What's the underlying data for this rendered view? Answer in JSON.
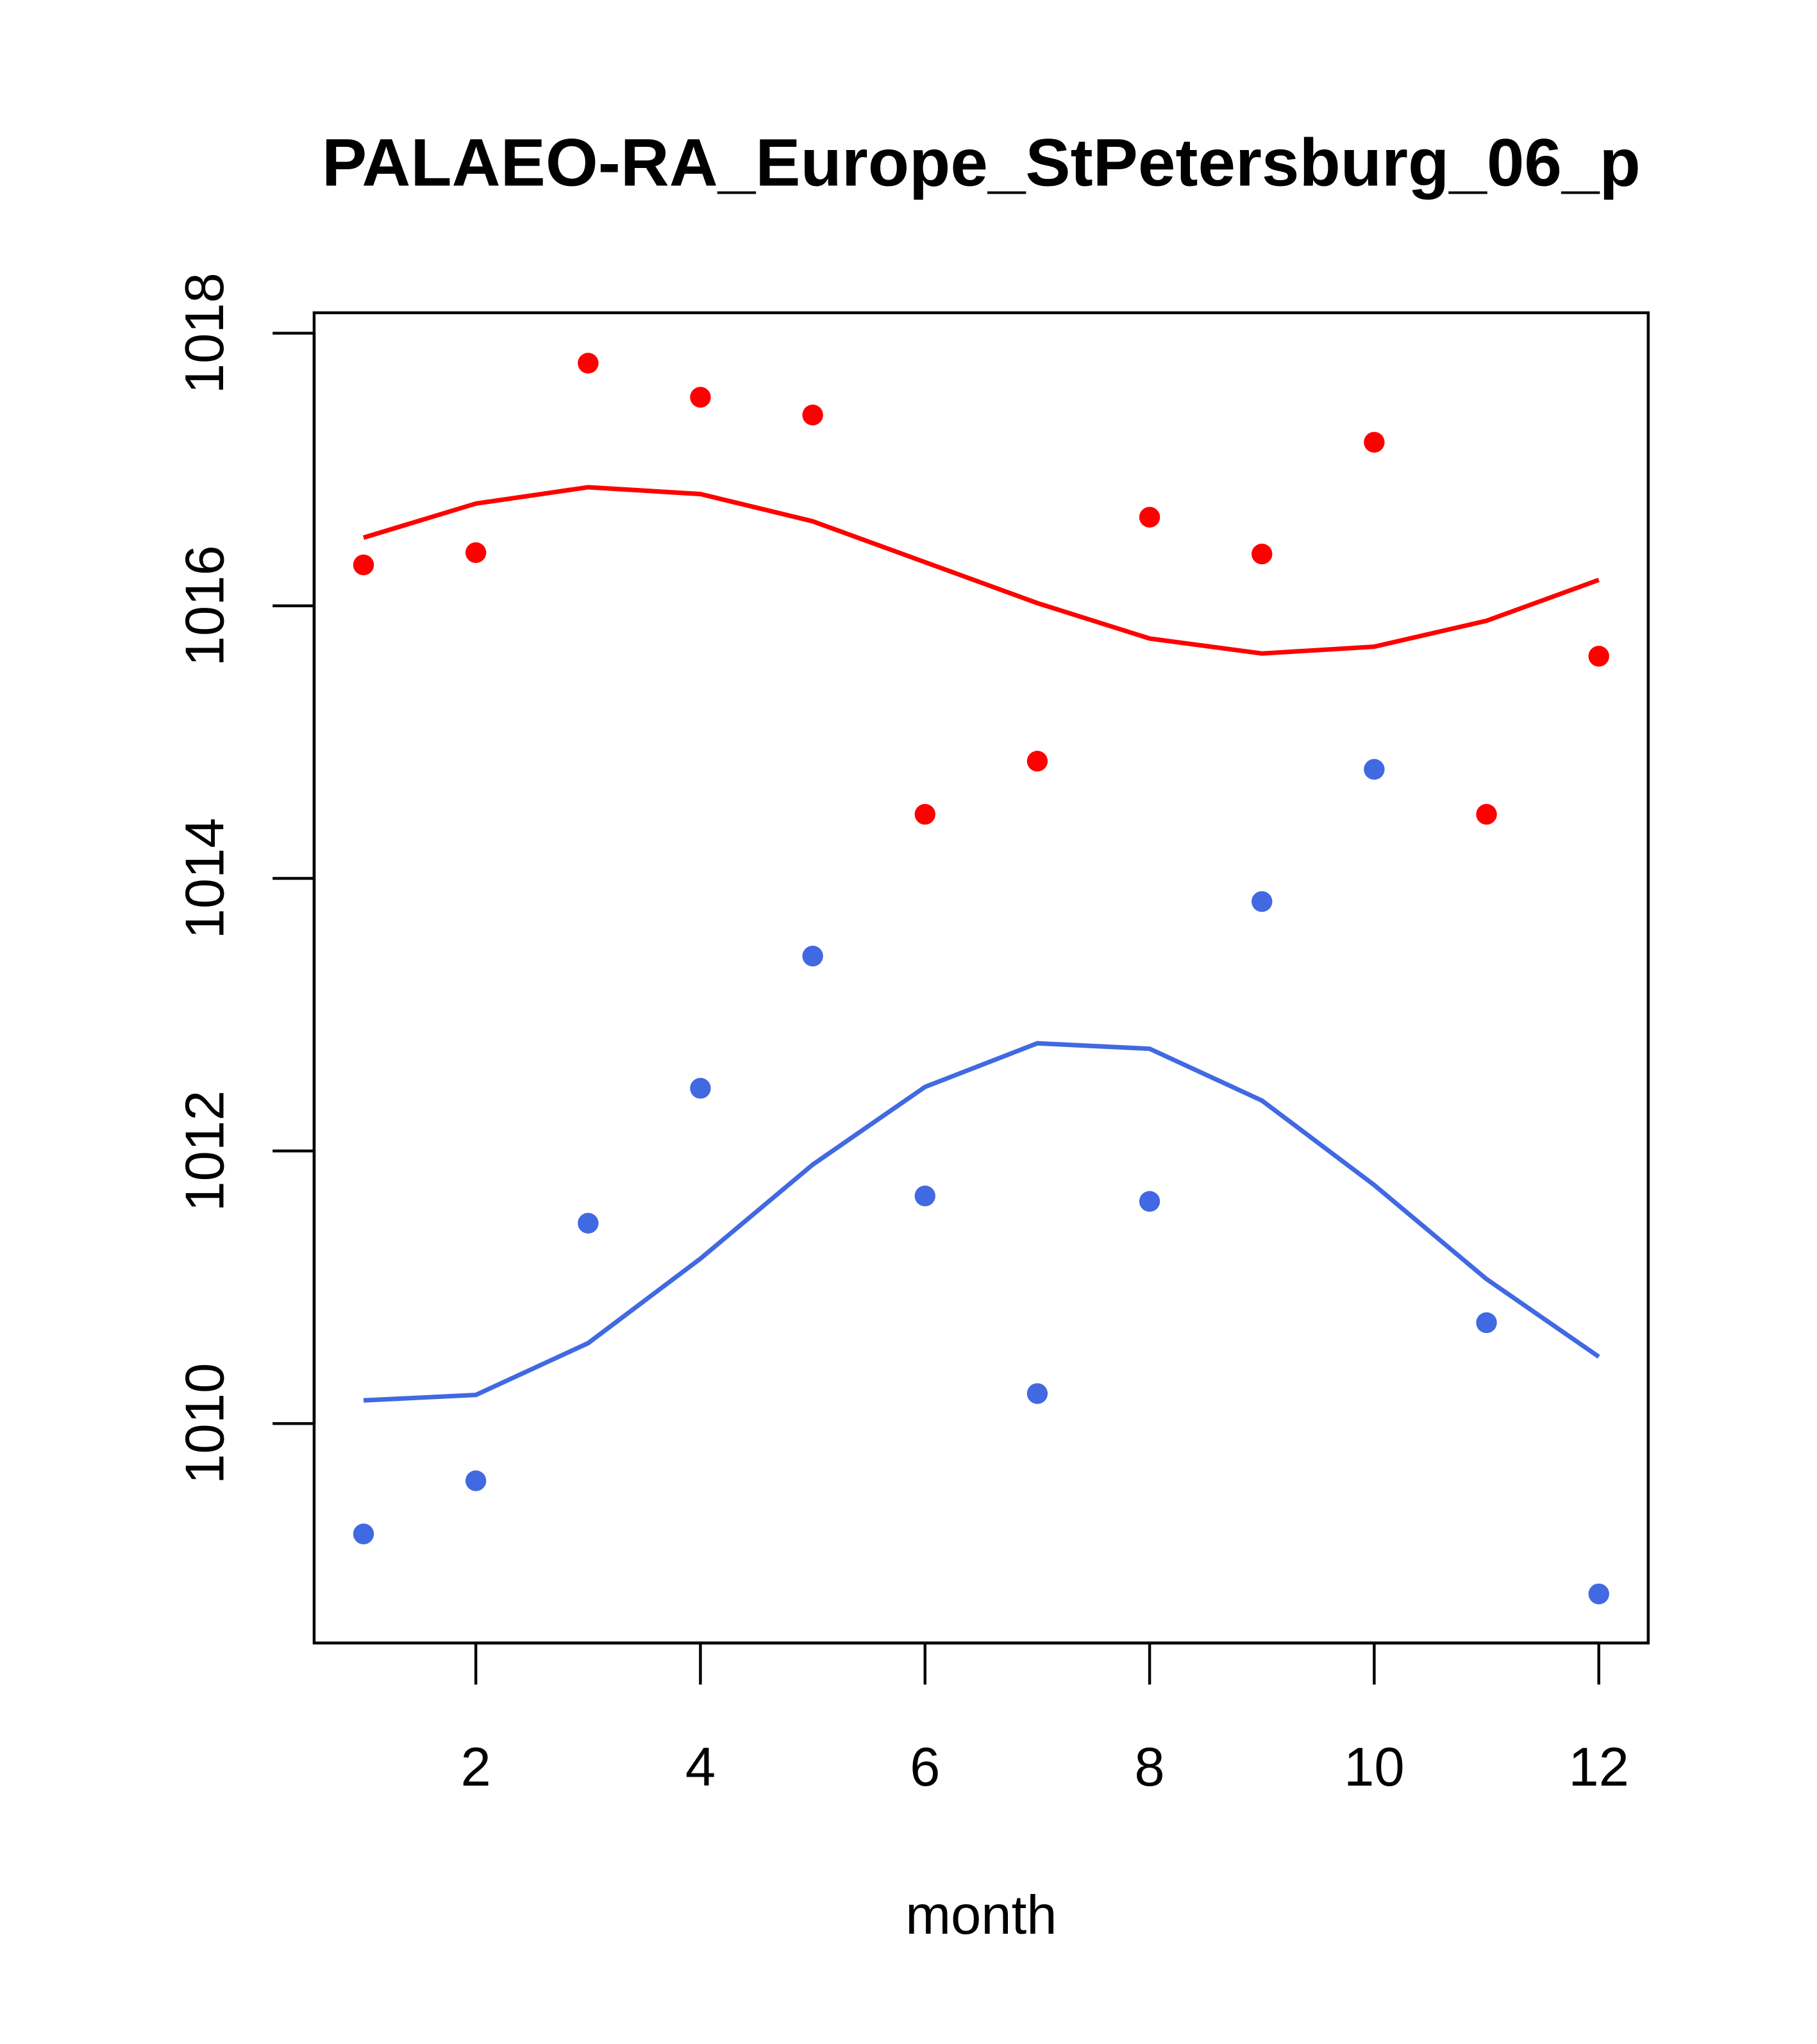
{
  "chart_data": {
    "type": "scatter",
    "title": "PALAEO-RA_Europe_StPetersburg_06_p",
    "xlabel": "month",
    "ylabel": "",
    "xlim": [
      0.56,
      12.44
    ],
    "ylim": [
      1008.39,
      1018.15
    ],
    "x_ticks": [
      2,
      4,
      6,
      8,
      10,
      12
    ],
    "y_ticks": [
      1010,
      1012,
      1014,
      1016,
      1018
    ],
    "x": [
      1,
      2,
      3,
      4,
      5,
      6,
      7,
      8,
      9,
      10,
      11,
      12
    ],
    "series": [
      {
        "name": "red points",
        "kind": "points",
        "color": "#FF0000",
        "values": [
          1016.3,
          1016.39,
          1017.78,
          1017.53,
          1017.4,
          1014.47,
          1014.86,
          1016.65,
          1016.38,
          1017.2,
          1014.47,
          1015.63
        ]
      },
      {
        "name": "red line",
        "kind": "line",
        "color": "#FF0000",
        "values": [
          1016.5,
          1016.75,
          1016.87,
          1016.82,
          1016.62,
          1016.32,
          1016.02,
          1015.76,
          1015.65,
          1015.7,
          1015.89,
          1016.19
        ]
      },
      {
        "name": "blue points",
        "kind": "points",
        "color": "#4169E1",
        "values": [
          1009.19,
          1009.58,
          1011.47,
          1012.46,
          1013.43,
          1011.67,
          1010.22,
          1011.63,
          1013.83,
          1014.8,
          1010.74,
          1008.75
        ]
      },
      {
        "name": "blue line",
        "kind": "line",
        "color": "#4169E1",
        "values": [
          1010.17,
          1010.21,
          1010.59,
          1011.21,
          1011.9,
          1012.47,
          1012.79,
          1012.75,
          1012.37,
          1011.75,
          1011.06,
          1010.49
        ]
      }
    ]
  }
}
